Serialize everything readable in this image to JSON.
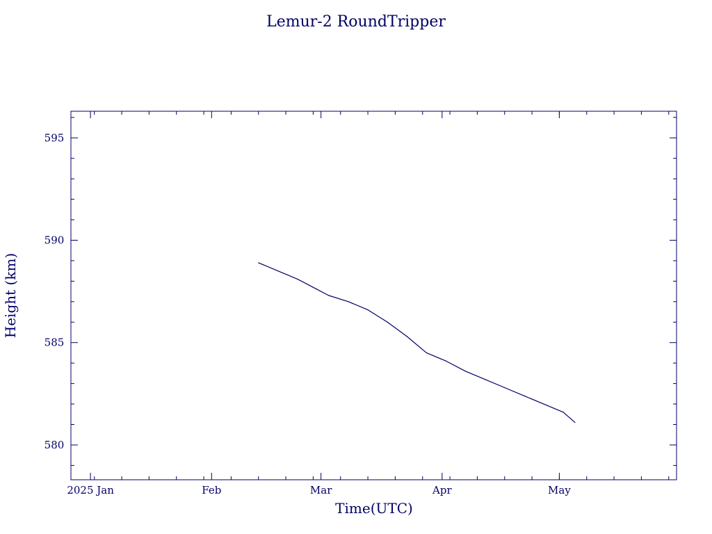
{
  "chart_data": {
    "type": "line",
    "title": "Lemur-2 RoundTripper",
    "xlabel": "Time(UTC)",
    "ylabel": "Height (km)",
    "x_major_ticks": [
      {
        "date": "2025-01-01",
        "label": "2025 Jan"
      },
      {
        "date": "2025-02-01",
        "label": "Feb"
      },
      {
        "date": "2025-03-01",
        "label": "Mar"
      },
      {
        "date": "2025-04-01",
        "label": "Apr"
      },
      {
        "date": "2025-05-01",
        "label": "May"
      }
    ],
    "xlim": [
      "2024-12-27",
      "2025-05-31"
    ],
    "y_ticks": [
      580,
      585,
      590,
      595
    ],
    "ylim": [
      578.3,
      596.3
    ],
    "grid": false,
    "color": "#000066",
    "series": [
      {
        "x": [
          "2025-02-13",
          "2025-02-18",
          "2025-02-23",
          "2025-02-28",
          "2025-03-03",
          "2025-03-08",
          "2025-03-13",
          "2025-03-18",
          "2025-03-23",
          "2025-03-28",
          "2025-04-02",
          "2025-04-07",
          "2025-04-12",
          "2025-04-17",
          "2025-04-22",
          "2025-04-27",
          "2025-05-02",
          "2025-05-05"
        ],
        "y": [
          588.9,
          588.5,
          588.1,
          587.6,
          587.3,
          587.0,
          586.6,
          586.0,
          585.3,
          584.5,
          584.1,
          583.6,
          583.2,
          582.8,
          582.4,
          582.0,
          581.6,
          581.1
        ]
      }
    ]
  }
}
